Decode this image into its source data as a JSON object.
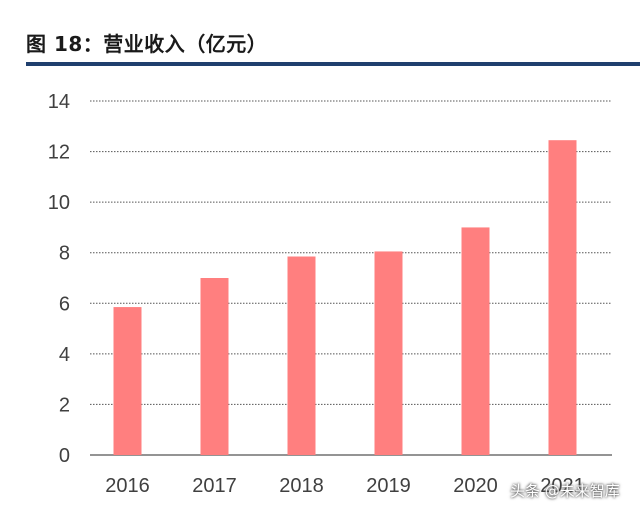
{
  "header": {
    "title": "图 18：营业收入（亿元）"
  },
  "watermark": "头条 @未来智库",
  "chart_data": {
    "type": "bar",
    "categories": [
      "2016",
      "2017",
      "2018",
      "2019",
      "2020",
      "2021"
    ],
    "values": [
      5.85,
      7.0,
      7.85,
      8.05,
      9.0,
      12.45
    ],
    "ylim": [
      0,
      14
    ],
    "yticks": [
      "0",
      "2",
      "4",
      "6",
      "8",
      "10",
      "12",
      "14"
    ],
    "grid": true,
    "legend": "none",
    "bar_color": "#ff7f7f",
    "grid_color": "#555555"
  }
}
